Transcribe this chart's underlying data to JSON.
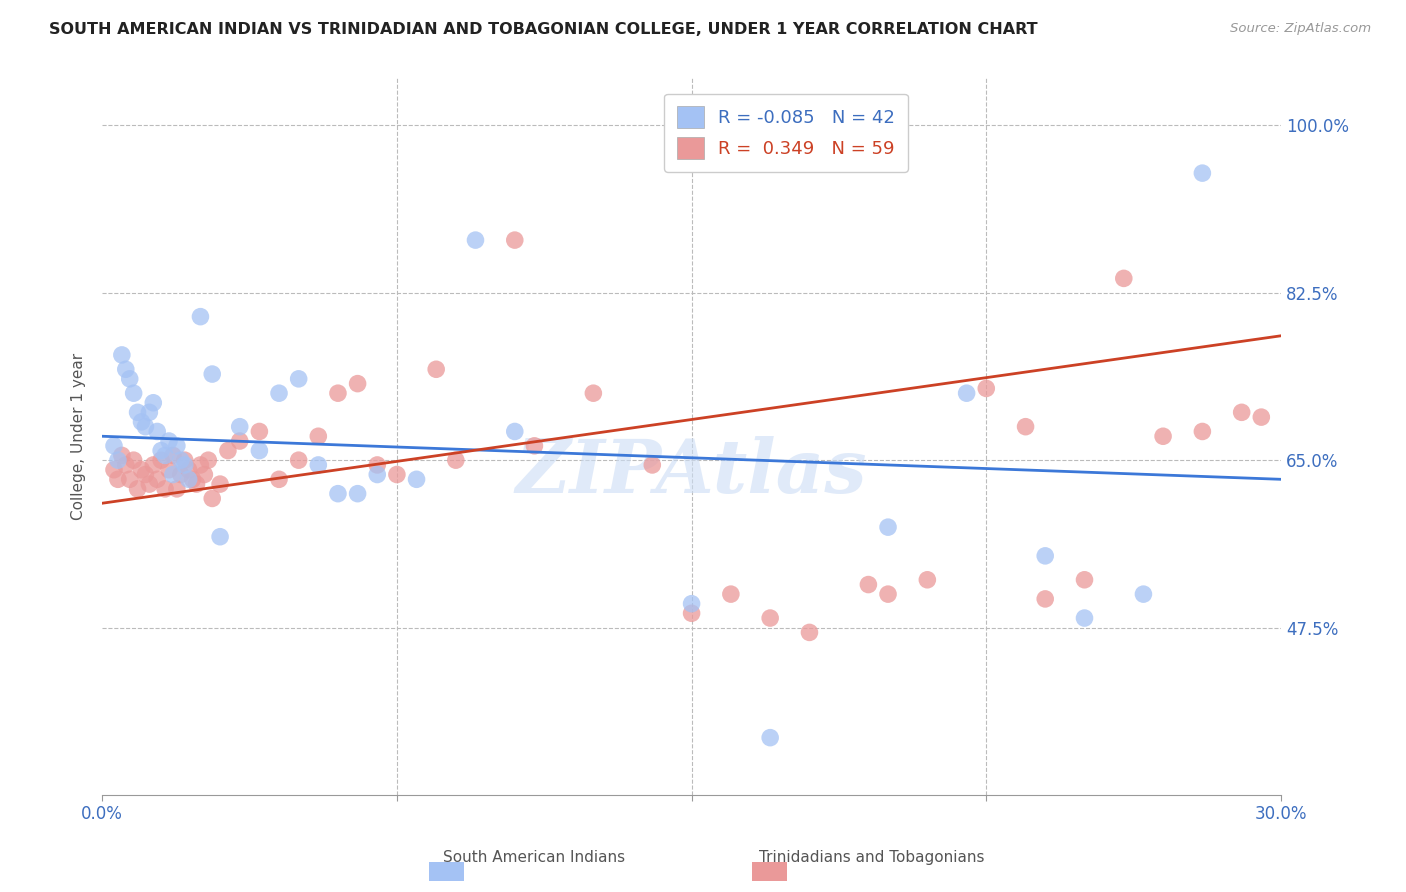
{
  "title": "SOUTH AMERICAN INDIAN VS TRINIDADIAN AND TOBAGONIAN COLLEGE, UNDER 1 YEAR CORRELATION CHART",
  "source": "Source: ZipAtlas.com",
  "ylabel": "College, Under 1 year",
  "xmin": 0.0,
  "xmax": 30.0,
  "ymin": 30.0,
  "ymax": 105.0,
  "yticks": [
    47.5,
    65.0,
    82.5,
    100.0
  ],
  "ytick_labels": [
    "47.5%",
    "65.0%",
    "82.5%",
    "100.0%"
  ],
  "xticks": [
    0.0,
    7.5,
    15.0,
    22.5,
    30.0
  ],
  "xtick_labels": [
    "0.0%",
    "",
    "",
    "",
    "30.0%"
  ],
  "blue_R": -0.085,
  "blue_N": 42,
  "pink_R": 0.349,
  "pink_N": 59,
  "blue_label": "South American Indians",
  "pink_label": "Trinidadians and Tobagonians",
  "blue_color": "#a4c2f4",
  "pink_color": "#ea9999",
  "blue_line_color": "#3c78d8",
  "pink_line_color": "#cc4125",
  "watermark": "ZIPAtlas",
  "blue_line_x0": 0.0,
  "blue_line_y0": 67.5,
  "blue_line_x1": 30.0,
  "blue_line_y1": 63.0,
  "pink_line_x0": 0.0,
  "pink_line_y0": 60.5,
  "pink_line_x1": 30.0,
  "pink_line_y1": 78.0,
  "blue_scatter_x": [
    0.3,
    0.4,
    0.5,
    0.6,
    0.7,
    0.8,
    0.9,
    1.0,
    1.1,
    1.2,
    1.3,
    1.4,
    1.5,
    1.6,
    1.7,
    1.8,
    1.9,
    2.0,
    2.1,
    2.2,
    2.5,
    2.8,
    3.0,
    3.5,
    4.0,
    4.5,
    5.0,
    5.5,
    6.0,
    6.5,
    7.0,
    8.0,
    9.5,
    10.5,
    15.0,
    17.0,
    20.0,
    22.0,
    24.0,
    25.0,
    26.5,
    28.0
  ],
  "blue_scatter_y": [
    66.5,
    65.0,
    76.0,
    74.5,
    73.5,
    72.0,
    70.0,
    69.0,
    68.5,
    70.0,
    71.0,
    68.0,
    66.0,
    65.5,
    67.0,
    63.5,
    66.5,
    65.0,
    64.5,
    63.0,
    80.0,
    74.0,
    57.0,
    68.5,
    66.0,
    72.0,
    73.5,
    64.5,
    61.5,
    61.5,
    63.5,
    63.0,
    88.0,
    68.0,
    50.0,
    36.0,
    58.0,
    72.0,
    55.0,
    48.5,
    51.0,
    95.0
  ],
  "pink_scatter_x": [
    0.3,
    0.4,
    0.5,
    0.6,
    0.7,
    0.8,
    0.9,
    1.0,
    1.1,
    1.2,
    1.3,
    1.4,
    1.5,
    1.6,
    1.7,
    1.8,
    1.9,
    2.0,
    2.1,
    2.2,
    2.3,
    2.4,
    2.5,
    2.6,
    2.7,
    2.8,
    3.0,
    3.2,
    3.5,
    4.0,
    4.5,
    5.0,
    5.5,
    6.0,
    6.5,
    7.0,
    7.5,
    8.5,
    9.0,
    10.5,
    11.0,
    12.5,
    14.0,
    15.0,
    16.0,
    17.0,
    18.0,
    19.5,
    20.0,
    21.0,
    22.5,
    23.5,
    24.0,
    25.0,
    26.0,
    27.0,
    28.0,
    29.0,
    29.5
  ],
  "pink_scatter_y": [
    64.0,
    63.0,
    65.5,
    64.5,
    63.0,
    65.0,
    62.0,
    64.0,
    63.5,
    62.5,
    64.5,
    63.0,
    65.0,
    62.0,
    64.0,
    65.5,
    62.0,
    63.5,
    65.0,
    64.0,
    63.0,
    62.5,
    64.5,
    63.5,
    65.0,
    61.0,
    62.5,
    66.0,
    67.0,
    68.0,
    63.0,
    65.0,
    67.5,
    72.0,
    73.0,
    64.5,
    63.5,
    74.5,
    65.0,
    88.0,
    66.5,
    72.0,
    64.5,
    49.0,
    51.0,
    48.5,
    47.0,
    52.0,
    51.0,
    52.5,
    72.5,
    68.5,
    50.5,
    52.5,
    84.0,
    67.5,
    68.0,
    70.0,
    69.5
  ]
}
